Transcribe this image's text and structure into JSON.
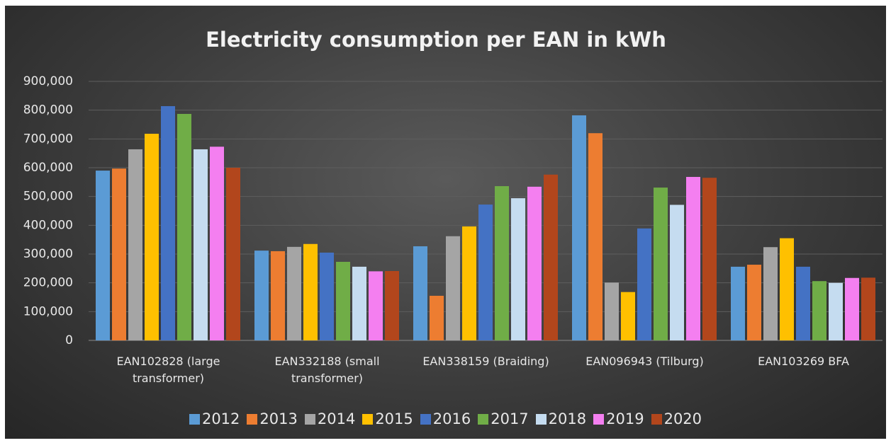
{
  "chart_data": {
    "type": "bar",
    "title": "Electricity consumption per EAN in kWh",
    "categories": [
      "EAN102828 (large transformer)",
      "EAN332188 (small transformer)",
      "EAN338159 (Braiding)",
      "EAN096943 (Tilburg)",
      "EAN103269 BFA"
    ],
    "series": [
      {
        "name": "2012",
        "color": "#5b9bd5",
        "values": [
          590000,
          312000,
          327000,
          782000,
          256000
        ]
      },
      {
        "name": "2013",
        "color": "#ed7d31",
        "values": [
          597000,
          310000,
          155000,
          720000,
          263000
        ]
      },
      {
        "name": "2014",
        "color": "#a5a5a5",
        "values": [
          664000,
          325000,
          362000,
          201000,
          324000
        ]
      },
      {
        "name": "2015",
        "color": "#ffc000",
        "values": [
          718000,
          335000,
          396000,
          168000,
          355000
        ]
      },
      {
        "name": "2016",
        "color": "#4472c4",
        "values": [
          814000,
          305000,
          472000,
          389000,
          256000
        ]
      },
      {
        "name": "2017",
        "color": "#70ad47",
        "values": [
          787000,
          273000,
          536000,
          531000,
          206000
        ]
      },
      {
        "name": "2018",
        "color": "#c5dcf0",
        "values": [
          664000,
          256000,
          494000,
          471000,
          200000
        ]
      },
      {
        "name": "2019",
        "color": "#f47ff0",
        "values": [
          673000,
          240000,
          534000,
          568000,
          217000
        ]
      },
      {
        "name": "2020",
        "color": "#b2461c",
        "values": [
          600000,
          241000,
          576000,
          565000,
          218000
        ]
      }
    ],
    "ylim": [
      0,
      900000
    ],
    "yticks": [
      0,
      {
        "value": 100000,
        "label": "100,000"
      },
      {
        "value": 200000,
        "label": "200,000"
      },
      {
        "value": 300000,
        "label": "300,000"
      },
      {
        "value": 400000,
        "label": "400,000"
      },
      {
        "value": 500000,
        "label": "500,000"
      },
      {
        "value": 600000,
        "label": "600,000"
      },
      {
        "value": 700000,
        "label": "700,000"
      },
      {
        "value": 800000,
        "label": "800,000"
      },
      {
        "value": 900000,
        "label": "900,000"
      }
    ],
    "grid": true
  }
}
